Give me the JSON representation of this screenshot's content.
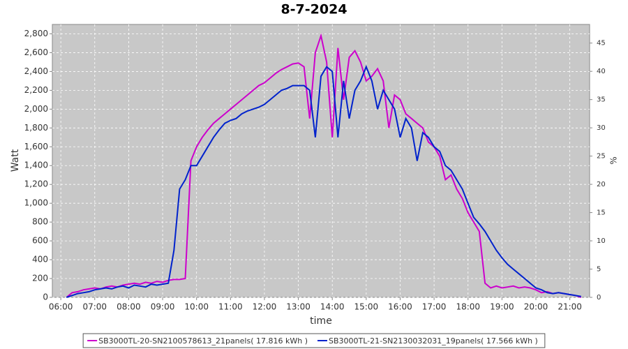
{
  "chart_data": {
    "type": "line",
    "title": "8-7-2024",
    "xlabel": "time",
    "ylabel": "Watt",
    "y2label": "%",
    "x": [
      "06:10",
      "06:20",
      "06:30",
      "06:40",
      "06:50",
      "07:00",
      "07:10",
      "07:20",
      "07:30",
      "07:40",
      "07:50",
      "08:00",
      "08:10",
      "08:20",
      "08:30",
      "08:40",
      "08:50",
      "09:00",
      "09:10",
      "09:20",
      "09:30",
      "09:40",
      "09:50",
      "10:00",
      "10:10",
      "10:20",
      "10:30",
      "10:40",
      "10:50",
      "11:00",
      "11:10",
      "11:20",
      "11:30",
      "11:40",
      "11:50",
      "12:00",
      "12:10",
      "12:20",
      "12:30",
      "12:40",
      "12:50",
      "13:00",
      "13:10",
      "13:20",
      "13:30",
      "13:40",
      "13:50",
      "14:00",
      "14:10",
      "14:20",
      "14:30",
      "14:40",
      "14:50",
      "15:00",
      "15:10",
      "15:20",
      "15:30",
      "15:40",
      "15:50",
      "16:00",
      "16:10",
      "16:20",
      "16:30",
      "16:40",
      "16:50",
      "17:00",
      "17:10",
      "17:20",
      "17:30",
      "17:40",
      "17:50",
      "18:00",
      "18:10",
      "18:20",
      "18:30",
      "18:40",
      "18:50",
      "19:00",
      "19:10",
      "19:20",
      "19:30",
      "19:40",
      "19:50",
      "20:00",
      "20:10",
      "20:20",
      "20:30",
      "20:40",
      "20:50",
      "21:00",
      "21:10",
      "21:20"
    ],
    "series": [
      {
        "name": "SB3000TL-20-SN2100578613_21panels( 17.816 kWh )",
        "color": "#cc00cc",
        "values": [
          0,
          50,
          60,
          80,
          90,
          100,
          90,
          110,
          120,
          110,
          130,
          140,
          150,
          140,
          160,
          150,
          170,
          160,
          180,
          190,
          190,
          200,
          1450,
          1600,
          1700,
          1780,
          1850,
          1900,
          1950,
          2000,
          2050,
          2100,
          2150,
          2200,
          2250,
          2280,
          2330,
          2380,
          2420,
          2450,
          2480,
          2490,
          2450,
          1900,
          2600,
          2780,
          2500,
          1700,
          2650,
          2100,
          2550,
          2620,
          2500,
          2300,
          2350,
          2430,
          2300,
          1800,
          2150,
          2100,
          1950,
          1900,
          1850,
          1800,
          1650,
          1600,
          1500,
          1250,
          1300,
          1150,
          1050,
          900,
          800,
          700,
          150,
          100,
          120,
          100,
          110,
          120,
          100,
          110,
          100,
          80,
          50,
          60,
          40,
          50,
          40,
          30,
          20,
          0
        ]
      },
      {
        "name": "SB3000TL-21-SN2130032031_19panels( 17.566 kWh )",
        "color": "#0022cc",
        "values": [
          0,
          20,
          40,
          50,
          60,
          80,
          90,
          100,
          90,
          110,
          120,
          100,
          130,
          120,
          110,
          140,
          130,
          140,
          150,
          500,
          1150,
          1250,
          1400,
          1400,
          1500,
          1600,
          1700,
          1780,
          1850,
          1880,
          1900,
          1950,
          1980,
          2000,
          2020,
          2050,
          2100,
          2150,
          2200,
          2220,
          2250,
          2250,
          2250,
          2200,
          1700,
          2350,
          2450,
          2400,
          1700,
          2300,
          1900,
          2200,
          2300,
          2450,
          2300,
          2000,
          2200,
          2100,
          2000,
          1700,
          1900,
          1800,
          1450,
          1750,
          1700,
          1600,
          1550,
          1400,
          1350,
          1250,
          1150,
          1000,
          850,
          780,
          700,
          600,
          500,
          420,
          350,
          300,
          250,
          200,
          150,
          100,
          80,
          50,
          40,
          50,
          40,
          30,
          20,
          10
        ]
      }
    ],
    "xlim": [
      "05:45",
      "21:35"
    ],
    "xticks": [
      "06:00",
      "07:00",
      "08:00",
      "09:00",
      "10:00",
      "11:00",
      "12:00",
      "13:00",
      "14:00",
      "15:00",
      "16:00",
      "17:00",
      "18:00",
      "19:00",
      "20:00",
      "21:00"
    ],
    "ylim": [
      0,
      2900
    ],
    "yticks": [
      0,
      200,
      400,
      600,
      800,
      {
        "value": 1000,
        "label": "1,000"
      },
      {
        "value": 1200,
        "label": "1,200"
      },
      {
        "value": 1400,
        "label": "1,400"
      },
      {
        "value": 1600,
        "label": "1,600"
      },
      {
        "value": 1800,
        "label": "1,800"
      },
      {
        "value": 2000,
        "label": "2,000"
      },
      {
        "value": 2200,
        "label": "2,200"
      },
      {
        "value": 2400,
        "label": "2,400"
      },
      {
        "value": 2600,
        "label": "2,600"
      },
      {
        "value": 2800,
        "label": "2,800"
      }
    ],
    "y2lim": [
      0,
      48.3
    ],
    "y2ticks": [
      0,
      5,
      10,
      15,
      20,
      25,
      30,
      35,
      40,
      45
    ],
    "grid": true
  }
}
